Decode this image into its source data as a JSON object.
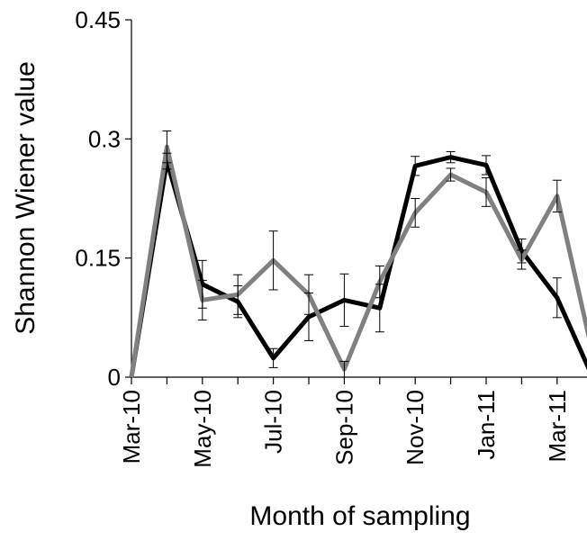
{
  "chart_data": {
    "type": "line",
    "x_label": "Month of sampling",
    "y_label": "Shannon Wiener value",
    "categories": [
      "Mar-10",
      null,
      "May-10",
      null,
      "Jul-10",
      null,
      "Sep-10",
      null,
      "Nov-10",
      null,
      "Jan-11",
      null,
      "Mar-11",
      null
    ],
    "ylim": [
      0,
      0.45
    ],
    "yticks": [
      0,
      0.15,
      0.3,
      0.45
    ],
    "series": [
      {
        "color": "#000000",
        "values": [
          0,
          0.272,
          0.117,
          0.095,
          0.024,
          0.076,
          0.097,
          0.087,
          0.266,
          0.277,
          0.267,
          0.159,
          0.1,
          0
        ],
        "errors": [
          0,
          0.01,
          0.03,
          0.02,
          0.012,
          0.03,
          0.033,
          0.03,
          0.012,
          0.007,
          0.012,
          0.015,
          0.025,
          0
        ]
      },
      {
        "color": "#808080",
        "values": [
          0,
          0.29,
          0.097,
          0.104,
          0.147,
          0.104,
          0.01,
          0.12,
          0.207,
          0.255,
          0.233,
          0.148,
          0.228,
          0.03
        ],
        "errors": [
          0,
          0.02,
          0.025,
          0.025,
          0.037,
          0.025,
          0.01,
          0.02,
          0.018,
          0.008,
          0.018,
          0.012,
          0.02,
          0
        ]
      }
    ]
  }
}
